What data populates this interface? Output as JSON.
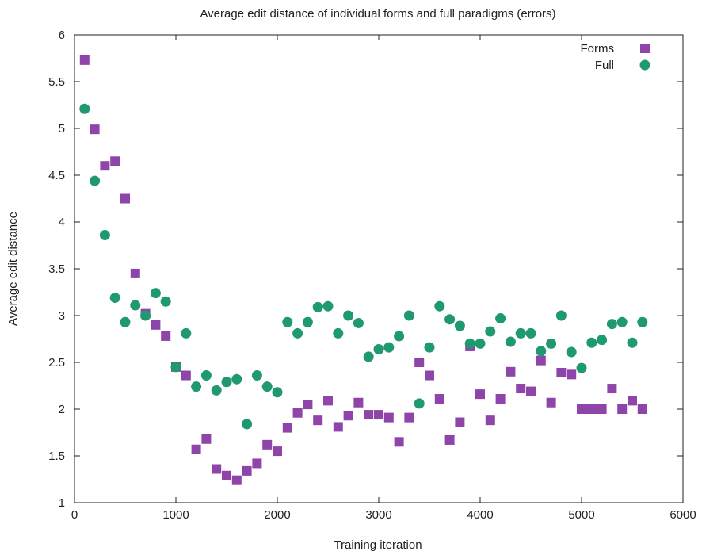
{
  "chart_data": {
    "type": "scatter",
    "title": "Average edit distance of individual forms and full paradigms (errors)",
    "xlabel": "Training iteration",
    "ylabel": "Average edit distance",
    "xlim": [
      0,
      6000
    ],
    "ylim": [
      1,
      6
    ],
    "xticks": [
      "0",
      "1000",
      "2000",
      "3000",
      "4000",
      "5000",
      "6000"
    ],
    "yticks": [
      "1",
      "1.5",
      "2",
      "2.5",
      "3",
      "3.5",
      "4",
      "4.5",
      "5",
      "5.5",
      "6"
    ],
    "legend_position": "top-right",
    "series": [
      {
        "name": "Forms",
        "marker": "square",
        "color": "#8e44a8",
        "points": [
          [
            100,
            5.73
          ],
          [
            200,
            4.99
          ],
          [
            300,
            4.6
          ],
          [
            400,
            4.65
          ],
          [
            500,
            4.25
          ],
          [
            600,
            3.45
          ],
          [
            700,
            3.02
          ],
          [
            800,
            2.9
          ],
          [
            900,
            2.78
          ],
          [
            1000,
            2.45
          ],
          [
            1100,
            2.36
          ],
          [
            1200,
            1.57
          ],
          [
            1300,
            1.68
          ],
          [
            1400,
            1.36
          ],
          [
            1500,
            1.29
          ],
          [
            1600,
            1.24
          ],
          [
            1700,
            1.34
          ],
          [
            1800,
            1.42
          ],
          [
            1900,
            1.62
          ],
          [
            2000,
            1.55
          ],
          [
            2100,
            1.8
          ],
          [
            2200,
            1.96
          ],
          [
            2300,
            2.05
          ],
          [
            2400,
            1.88
          ],
          [
            2500,
            2.09
          ],
          [
            2600,
            1.81
          ],
          [
            2700,
            1.93
          ],
          [
            2800,
            2.07
          ],
          [
            2900,
            1.94
          ],
          [
            3000,
            1.94
          ],
          [
            3100,
            1.91
          ],
          [
            3200,
            1.65
          ],
          [
            3300,
            1.91
          ],
          [
            3400,
            2.5
          ],
          [
            3500,
            2.36
          ],
          [
            3600,
            2.11
          ],
          [
            3700,
            1.67
          ],
          [
            3800,
            1.86
          ],
          [
            3900,
            2.67
          ],
          [
            4000,
            2.16
          ],
          [
            4100,
            1.88
          ],
          [
            4200,
            2.11
          ],
          [
            4300,
            2.4
          ],
          [
            4400,
            2.22
          ],
          [
            4500,
            2.19
          ],
          [
            4600,
            2.52
          ],
          [
            4700,
            2.07
          ],
          [
            4800,
            2.39
          ],
          [
            4900,
            2.37
          ],
          [
            5000,
            2.0
          ],
          [
            5050,
            2.0
          ],
          [
            5100,
            2.0
          ],
          [
            5150,
            2.0
          ],
          [
            5200,
            2.0
          ],
          [
            5300,
            2.22
          ],
          [
            5400,
            2.0
          ],
          [
            5500,
            2.09
          ],
          [
            5600,
            2.0
          ]
        ]
      },
      {
        "name": "Full",
        "marker": "circle",
        "color": "#1f9a6e",
        "points": [
          [
            100,
            5.21
          ],
          [
            200,
            4.44
          ],
          [
            300,
            3.86
          ],
          [
            400,
            3.19
          ],
          [
            500,
            2.93
          ],
          [
            600,
            3.11
          ],
          [
            700,
            3.0
          ],
          [
            800,
            3.24
          ],
          [
            900,
            3.15
          ],
          [
            1000,
            2.45
          ],
          [
            1100,
            2.81
          ],
          [
            1200,
            2.24
          ],
          [
            1300,
            2.36
          ],
          [
            1400,
            2.2
          ],
          [
            1500,
            2.29
          ],
          [
            1600,
            2.32
          ],
          [
            1700,
            1.84
          ],
          [
            1800,
            2.36
          ],
          [
            1900,
            2.24
          ],
          [
            2000,
            2.18
          ],
          [
            2100,
            2.93
          ],
          [
            2200,
            2.81
          ],
          [
            2300,
            2.93
          ],
          [
            2400,
            3.09
          ],
          [
            2500,
            3.1
          ],
          [
            2600,
            2.81
          ],
          [
            2700,
            3.0
          ],
          [
            2800,
            2.92
          ],
          [
            2900,
            2.56
          ],
          [
            3000,
            2.64
          ],
          [
            3100,
            2.66
          ],
          [
            3200,
            2.78
          ],
          [
            3300,
            3.0
          ],
          [
            3400,
            2.06
          ],
          [
            3500,
            2.66
          ],
          [
            3600,
            3.1
          ],
          [
            3700,
            2.96
          ],
          [
            3800,
            2.89
          ],
          [
            3900,
            2.7
          ],
          [
            4000,
            2.7
          ],
          [
            4100,
            2.83
          ],
          [
            4200,
            2.97
          ],
          [
            4300,
            2.72
          ],
          [
            4400,
            2.81
          ],
          [
            4500,
            2.81
          ],
          [
            4600,
            2.62
          ],
          [
            4700,
            2.7
          ],
          [
            4800,
            3.0
          ],
          [
            4900,
            2.61
          ],
          [
            5000,
            2.44
          ],
          [
            5100,
            2.71
          ],
          [
            5200,
            2.74
          ],
          [
            5300,
            2.91
          ],
          [
            5400,
            2.93
          ],
          [
            5500,
            2.71
          ],
          [
            5600,
            2.93
          ]
        ]
      }
    ]
  }
}
